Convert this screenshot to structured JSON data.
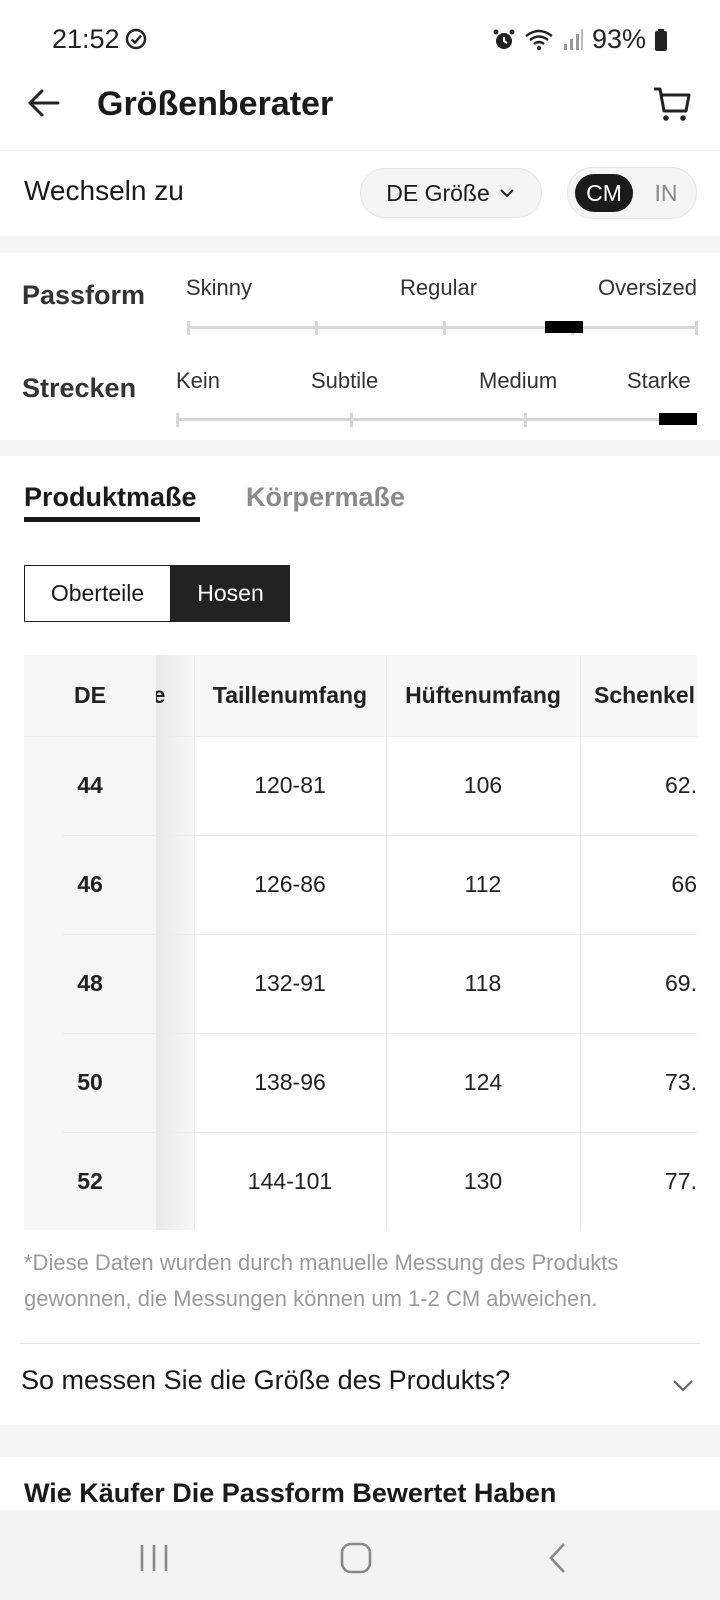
{
  "status_bar": {
    "time": "21:52",
    "battery": "93%",
    "icons": [
      "check-circle-icon",
      "alarm-icon",
      "wifi-icon",
      "signal-icon",
      "battery-icon"
    ]
  },
  "header": {
    "title": "Größenberater",
    "icons": [
      "back-arrow-icon",
      "cart-icon"
    ]
  },
  "switch": {
    "label": "Wechseln zu",
    "size_system": "DE Größe",
    "units": [
      "CM",
      "IN"
    ],
    "selected_unit": "CM"
  },
  "fit": {
    "passform": {
      "label": "Passform",
      "options": [
        "Skinny",
        "Regular",
        "Oversized"
      ],
      "level_fraction": 0.74
    },
    "strecken": {
      "label": "Strecken",
      "options": [
        "Kein",
        "Subtile",
        "Medium",
        "Starke"
      ],
      "level_fraction": 0.98
    }
  },
  "tabs": {
    "items": [
      "Produktmaße",
      "Körpermaße"
    ],
    "active": "Produktmaße"
  },
  "segments": {
    "items": [
      "Oberteile",
      "Hosen"
    ],
    "active": "Hosen"
  },
  "table": {
    "frozen_header": "DE",
    "peek_header": "e",
    "headers": [
      "Taillenumfang",
      "Hüftenumfang",
      "Schenkel"
    ],
    "rows": [
      {
        "de": "44",
        "taille": "120-81",
        "hufte": "106",
        "schenkel": "62."
      },
      {
        "de": "46",
        "taille": "126-86",
        "hufte": "112",
        "schenkel": "66"
      },
      {
        "de": "48",
        "taille": "132-91",
        "hufte": "118",
        "schenkel": "69."
      },
      {
        "de": "50",
        "taille": "138-96",
        "hufte": "124",
        "schenkel": "73."
      },
      {
        "de": "52",
        "taille": "144-101",
        "hufte": "130",
        "schenkel": "77."
      }
    ]
  },
  "note": "*Diese Daten wurden durch manuelle Messung des Produkts gewonnen, die Messungen können um 1-2 CM abweichen.",
  "howto": {
    "label": "So messen Sie die Größe des Produkts?"
  },
  "reviews": {
    "title": "Wie Käufer Die Passform Bewertet Haben"
  },
  "navbar": {
    "icons": [
      "recent-apps-icon",
      "home-icon",
      "back-icon"
    ]
  }
}
